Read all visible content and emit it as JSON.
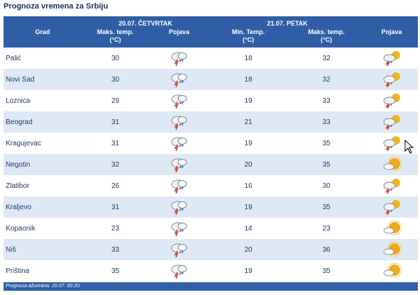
{
  "title": "Prognoza vremena za Srbiju",
  "header": {
    "day1": "20.07. ČETVRTAK",
    "day2": "21.07. PETAK",
    "grad": "Grad",
    "maks_temp": "Maks. temp.",
    "min_temp": "Min. Temp.",
    "unit": "(°C)",
    "pojava": "Pojava"
  },
  "rows": [
    {
      "city": "Palić",
      "max1": "30",
      "icon1": "storm-cloud-icon",
      "min2": "18",
      "max2": "32",
      "icon2": "sun-storm-cloud-icon"
    },
    {
      "city": "Novi Sad",
      "max1": "30",
      "icon1": "storm-cloud-icon",
      "min2": "18",
      "max2": "32",
      "icon2": "sun-storm-cloud-icon"
    },
    {
      "city": "Loznica",
      "max1": "29",
      "icon1": "storm-cloud-icon",
      "min2": "19",
      "max2": "33",
      "icon2": "sun-storm-cloud-icon"
    },
    {
      "city": "Beograd",
      "max1": "31",
      "icon1": "storm-cloud-icon",
      "min2": "21",
      "max2": "33",
      "icon2": "sun-storm-cloud-icon"
    },
    {
      "city": "Kragujevac",
      "max1": "31",
      "icon1": "storm-cloud-icon",
      "min2": "19",
      "max2": "35",
      "icon2": "sun-storm-cloud-icon"
    },
    {
      "city": "Negotin",
      "max1": "32",
      "icon1": "storm-cloud-icon",
      "min2": "20",
      "max2": "35",
      "icon2": "sun-cloud-icon"
    },
    {
      "city": "Zlatibor",
      "max1": "26",
      "icon1": "storm-cloud-icon",
      "min2": "16",
      "max2": "30",
      "icon2": "sun-storm-cloud-icon"
    },
    {
      "city": "Kraljevo",
      "max1": "31",
      "icon1": "storm-cloud-icon",
      "min2": "19",
      "max2": "35",
      "icon2": "sun-storm-cloud-icon"
    },
    {
      "city": "Kopaonik",
      "max1": "23",
      "icon1": "storm-cloud-icon",
      "min2": "14",
      "max2": "23",
      "icon2": "sun-cloud-icon"
    },
    {
      "city": "Niš",
      "max1": "33",
      "icon1": "storm-cloud-icon",
      "min2": "20",
      "max2": "36",
      "icon2": "sun-cloud-icon"
    },
    {
      "city": "Priština",
      "max1": "35",
      "icon1": "storm-cloud-icon",
      "min2": "19",
      "max2": "35",
      "icon2": "sun-cloud-icon"
    }
  ],
  "footer": "Prognoza ažurirana:  20.07. 00:20.",
  "colors": {
    "header_bg": "#2f5ea6",
    "stripe": "#dfe8f5",
    "text": "#233965"
  }
}
